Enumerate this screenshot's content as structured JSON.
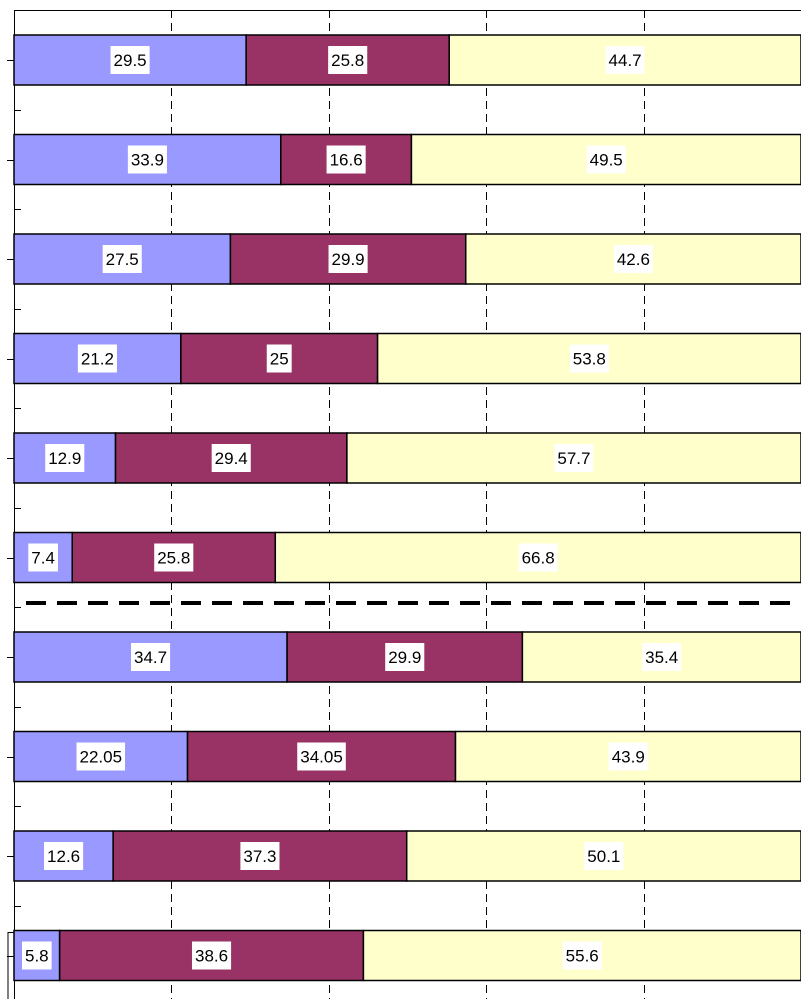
{
  "chart_data": {
    "type": "bar",
    "orientation": "horizontal",
    "stacked": true,
    "percent_stacked": true,
    "title": "",
    "xlabel": "",
    "ylabel": "",
    "xlim": [
      0,
      100
    ],
    "grid": "vertical dashed",
    "legend": "none",
    "categories": [
      "",
      "",
      "",
      "",
      "",
      "",
      "",
      "",
      "",
      ""
    ],
    "series": [
      {
        "color": "#9999ff",
        "values": [
          29.5,
          33.9,
          27.5,
          21.2,
          12.9,
          7.4,
          34.7,
          22.05,
          12.6,
          5.8
        ]
      },
      {
        "color": "#993366",
        "values": [
          25.8,
          16.6,
          29.9,
          25,
          29.4,
          25.8,
          29.9,
          34.05,
          37.3,
          38.6
        ]
      },
      {
        "color": "#ffffcc",
        "values": [
          44.7,
          49.5,
          42.6,
          53.8,
          57.7,
          66.8,
          35.4,
          43.9,
          50.1,
          55.6
        ]
      }
    ],
    "data_labels": [
      [
        "29.5",
        "25.8",
        "44.7"
      ],
      [
        "33.9",
        "16.6",
        "49.5"
      ],
      [
        "27.5",
        "29.9",
        "42.6"
      ],
      [
        "21.2",
        "25",
        "53.8"
      ],
      [
        "12.9",
        "29.4",
        "57.7"
      ],
      [
        "7.4",
        "25.8",
        "66.8"
      ],
      [
        "34.7",
        "29.9",
        "35.4"
      ],
      [
        "22.05",
        "34.05",
        "43.9"
      ],
      [
        "12.6",
        "37.3",
        "50.1"
      ],
      [
        "5.8",
        "38.6",
        "55.6"
      ]
    ],
    "separator_after_bar": 6
  }
}
